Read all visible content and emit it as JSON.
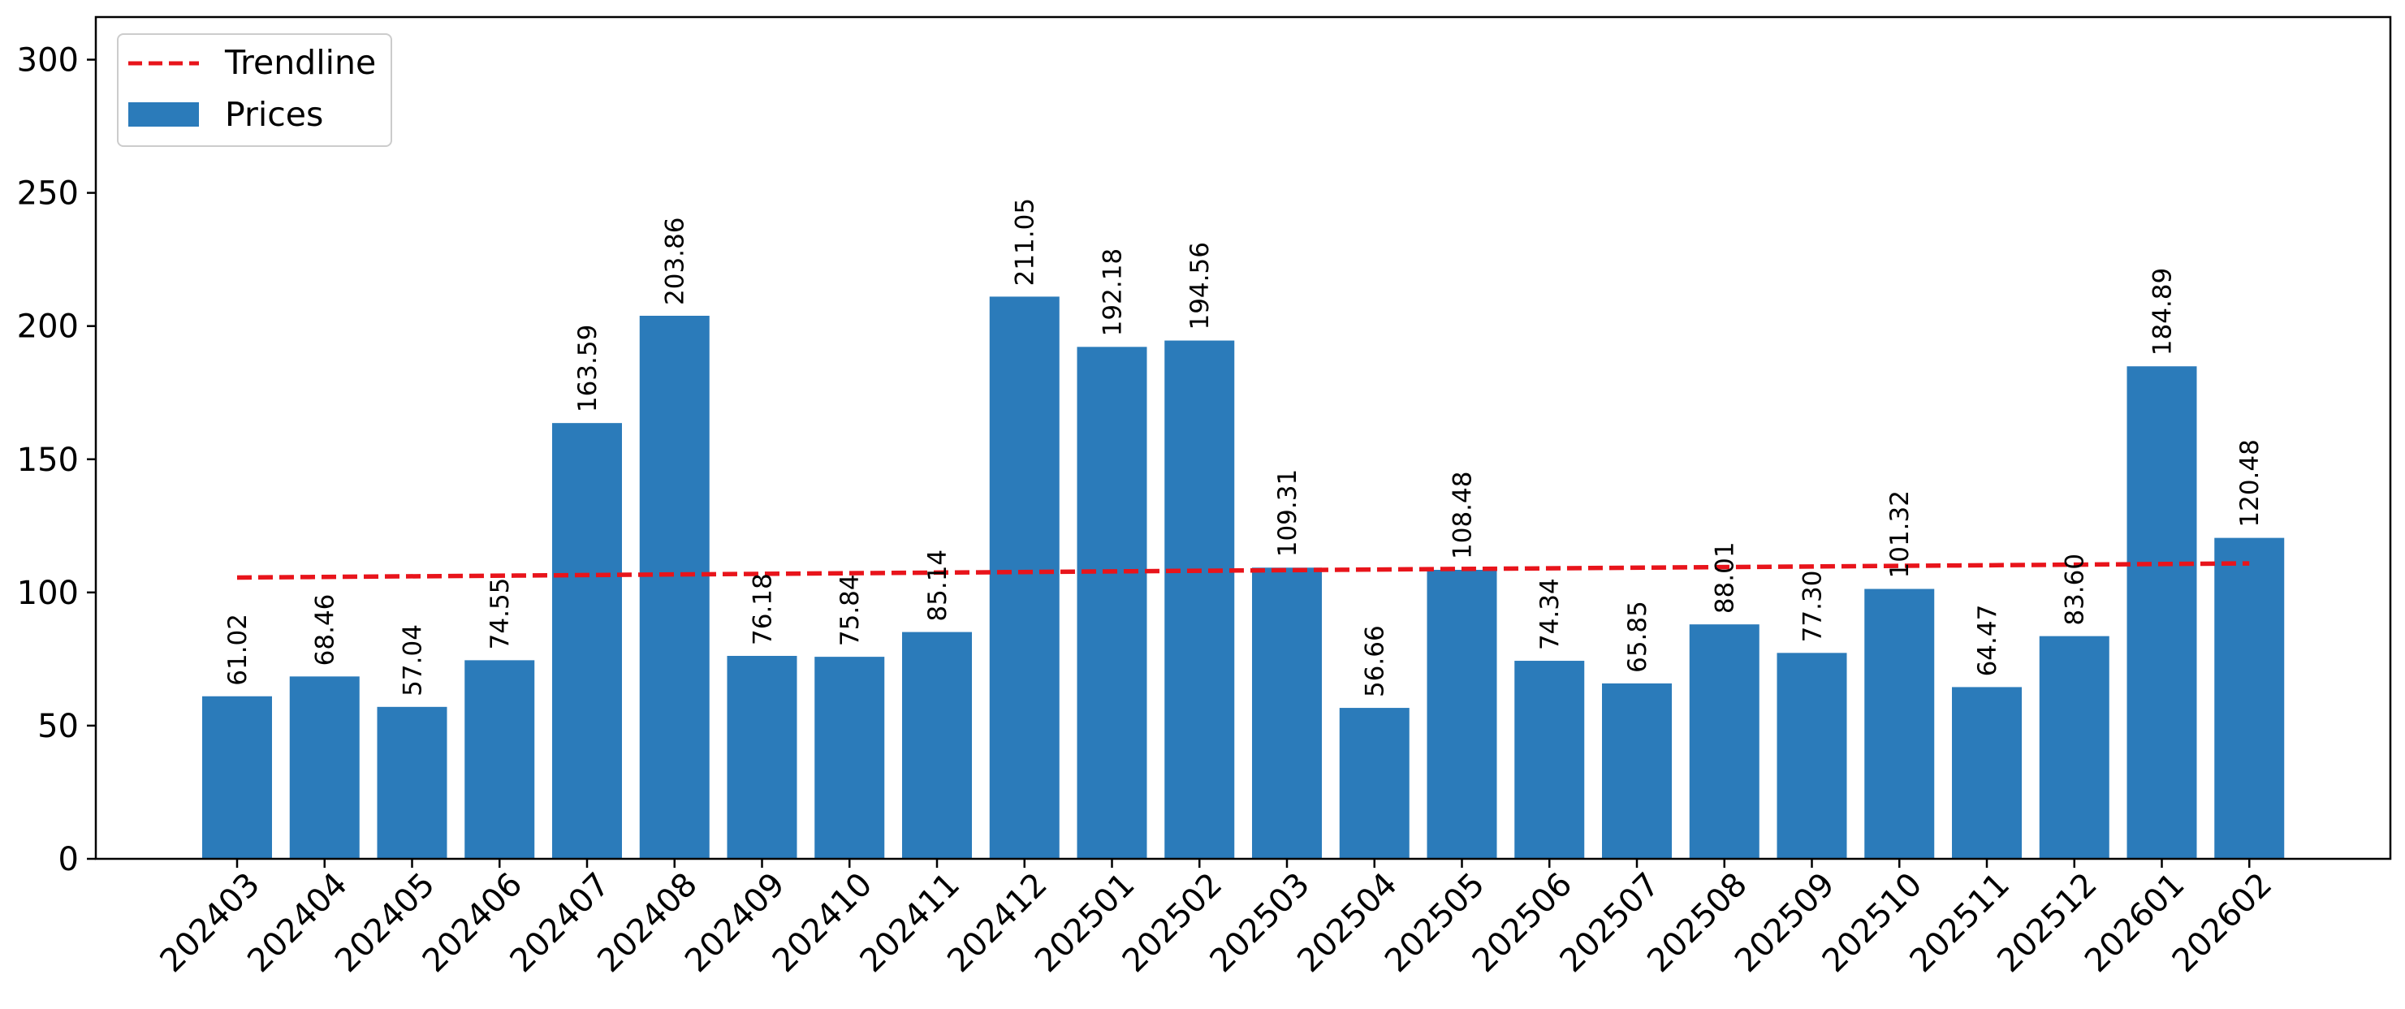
{
  "chart_data": {
    "type": "bar",
    "title": "",
    "xlabel": "",
    "ylabel": "",
    "ylim": [
      0,
      316
    ],
    "yticks": [
      0,
      50,
      100,
      150,
      200,
      250,
      300
    ],
    "categories": [
      "202403",
      "202404",
      "202405",
      "202406",
      "202407",
      "202408",
      "202409",
      "202410",
      "202411",
      "202412",
      "202501",
      "202502",
      "202503",
      "202504",
      "202505",
      "202506",
      "202507",
      "202508",
      "202509",
      "202510",
      "202511",
      "202512",
      "202601",
      "202602"
    ],
    "series": [
      {
        "name": "Prices",
        "kind": "bar",
        "color": "#2b7bba",
        "values": [
          61.02,
          68.46,
          57.04,
          74.55,
          163.59,
          203.86,
          76.18,
          75.84,
          85.14,
          211.05,
          192.18,
          194.56,
          109.31,
          56.66,
          108.48,
          74.34,
          65.85,
          88.01,
          77.3,
          101.32,
          64.47,
          83.6,
          184.89,
          120.48
        ],
        "data_labels": [
          "61.02",
          "68.46",
          "57.04",
          "74.55",
          "163.59",
          "203.86",
          "76.18",
          "75.84",
          "85.14",
          "211.05",
          "192.18",
          "194.56",
          "109.31",
          "56.66",
          "108.48",
          "74.34",
          "65.85",
          "88.01",
          "77.30",
          "101.32",
          "64.47",
          "83.60",
          "184.89",
          "120.48"
        ]
      },
      {
        "name": "Trendline",
        "kind": "line",
        "style": "dashed",
        "color": "#e8141b",
        "start": 105.6,
        "end": 110.9
      }
    ],
    "legend": {
      "position": "top-left",
      "entries": [
        "Trendline",
        "Prices"
      ]
    },
    "grid": false
  }
}
